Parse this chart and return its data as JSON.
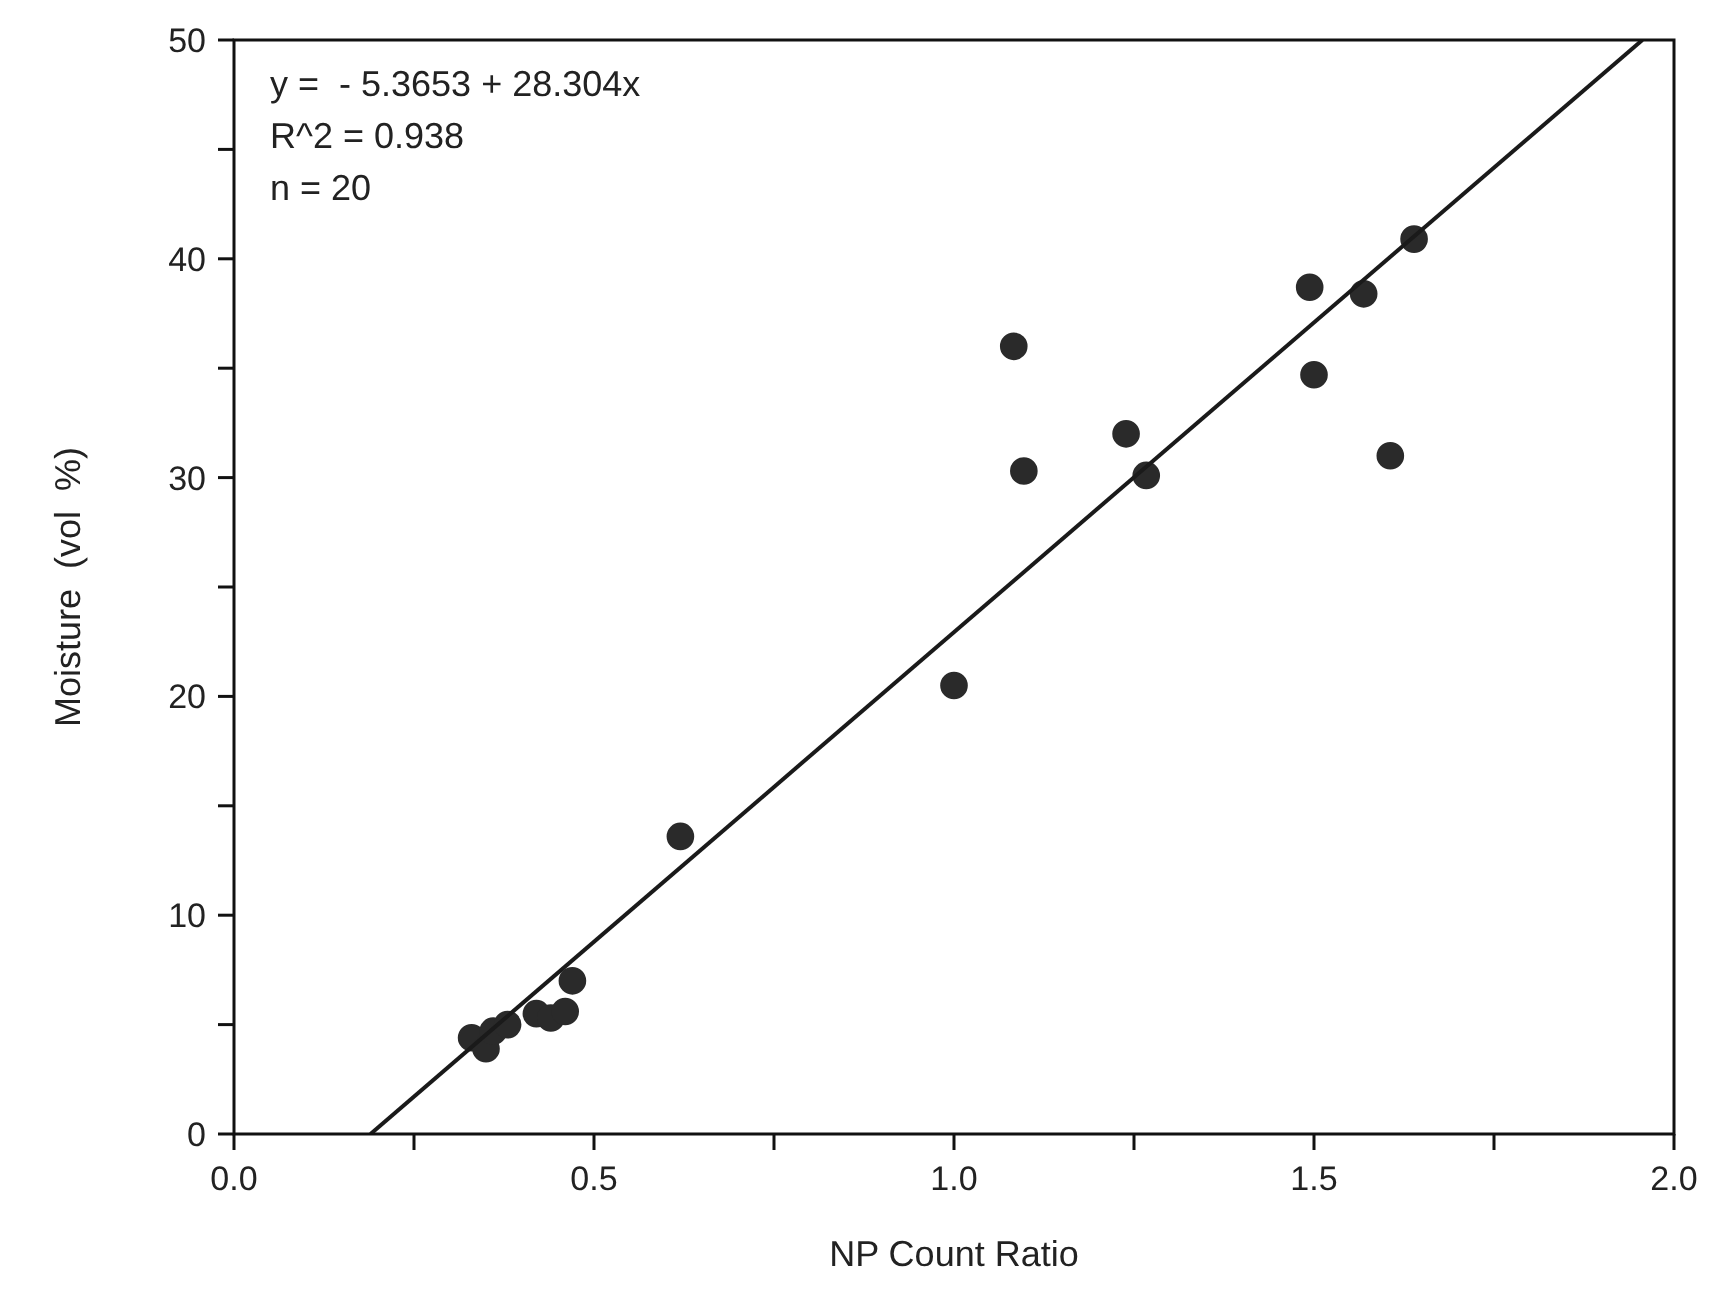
{
  "chart_data": {
    "type": "scatter",
    "xlabel": "NP Count Ratio",
    "ylabel": "Moisture  (vol  %)",
    "annotations": [
      "y =  - 5.3653 + 28.304x",
      "R^2 = 0.938",
      "n = 20"
    ],
    "xlim": [
      0,
      2
    ],
    "ylim": [
      0,
      50
    ],
    "xticks": [
      {
        "value": 0,
        "label": "0.0"
      },
      {
        "value": 0.25,
        "label": null
      },
      {
        "value": 0.5,
        "label": "0.5"
      },
      {
        "value": 0.75,
        "label": null
      },
      {
        "value": 1,
        "label": "1.0"
      },
      {
        "value": 1.25,
        "label": null
      },
      {
        "value": 1.5,
        "label": "1.5"
      },
      {
        "value": 1.75,
        "label": null
      },
      {
        "value": 2,
        "label": "2.0"
      }
    ],
    "yticks": [
      0,
      {
        "value": 5,
        "label": null
      },
      10,
      {
        "value": 15,
        "label": null
      },
      20,
      {
        "value": 25,
        "label": null
      },
      30,
      {
        "value": 35,
        "label": null
      },
      40,
      {
        "value": 45,
        "label": null
      },
      50
    ],
    "grid": false,
    "marker": "circle",
    "series": [
      {
        "color": "#2a2a2a",
        "x": [
          0.33,
          0.35,
          0.36,
          0.38,
          0.42,
          0.44,
          0.46,
          0.47,
          0.62,
          1.0,
          1.083,
          1.097,
          1.239,
          1.267,
          1.494,
          1.5,
          1.569,
          1.606,
          1.639
        ],
        "values": [
          4.4,
          3.9,
          4.7,
          5.0,
          5.5,
          5.3,
          5.6,
          7.0,
          13.6,
          20.5,
          36.0,
          30.3,
          32.0,
          30.1,
          38.7,
          34.7,
          38.4,
          31.0,
          40.9
        ]
      },
      {
        "type": "line",
        "color": "#1a1a1a",
        "marker": "none",
        "line_style": "solid",
        "x": [
          0.1896,
          1.9561
        ],
        "values": [
          0,
          50
        ]
      }
    ]
  }
}
